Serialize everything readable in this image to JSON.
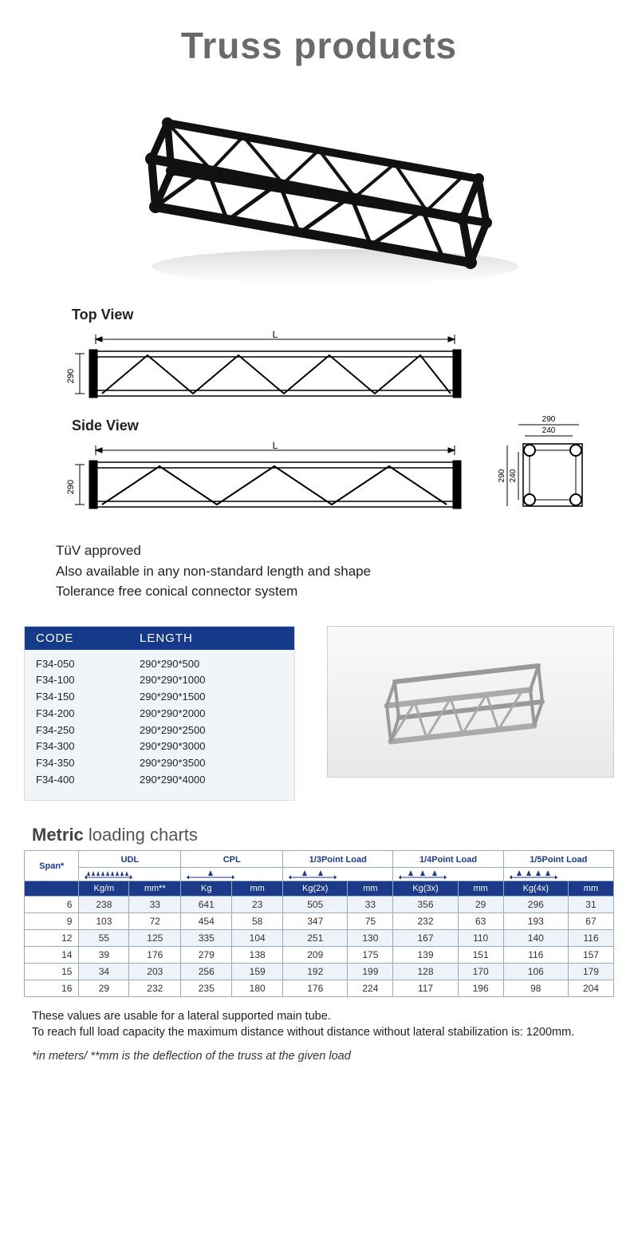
{
  "title": "Truss products",
  "views": {
    "top": "Top View",
    "side": "Side View"
  },
  "diagram": {
    "length_label": "L",
    "height_label": "290",
    "cross": {
      "outer": "290",
      "inner": "240"
    }
  },
  "notes": [
    "TüV approved",
    "Also available in any non-standard length and shape",
    "Tolerance free conical connector system"
  ],
  "code_table": {
    "headers": [
      "CODE",
      "LENGTH"
    ],
    "rows": [
      [
        "F34-050",
        "290*290*500"
      ],
      [
        "F34-100",
        "290*290*1000"
      ],
      [
        "F34-150",
        "290*290*1500"
      ],
      [
        "F34-200",
        "290*290*2000"
      ],
      [
        "F34-250",
        "290*290*2500"
      ],
      [
        "F34-300",
        "290*290*3000"
      ],
      [
        "F34-350",
        "290*290*3500"
      ],
      [
        "F34-400",
        "290*290*4000"
      ]
    ]
  },
  "metric_title_bold": "Metric",
  "metric_title_rest": " loading charts",
  "load_table": {
    "span_label": "Span*",
    "groups": [
      "UDL",
      "CPL",
      "1/3Point Load",
      "1/4Point Load",
      "1/5Point Load"
    ],
    "units": [
      "Kg/m",
      "mm**",
      "Kg",
      "mm",
      "Kg(2x)",
      "mm",
      "Kg(3x)",
      "mm",
      "Kg(4x)",
      "mm"
    ],
    "rows": [
      [
        "6",
        "238",
        "33",
        "641",
        "23",
        "505",
        "33",
        "356",
        "29",
        "296",
        "31"
      ],
      [
        "9",
        "103",
        "72",
        "454",
        "58",
        "347",
        "75",
        "232",
        "63",
        "193",
        "67"
      ],
      [
        "12",
        "55",
        "125",
        "335",
        "104",
        "251",
        "130",
        "167",
        "110",
        "140",
        "116"
      ],
      [
        "14",
        "39",
        "176",
        "279",
        "138",
        "209",
        "175",
        "139",
        "151",
        "116",
        "157"
      ],
      [
        "15",
        "34",
        "203",
        "256",
        "159",
        "192",
        "199",
        "128",
        "170",
        "106",
        "179"
      ],
      [
        "16",
        "29",
        "232",
        "235",
        "180",
        "176",
        "224",
        "117",
        "196",
        "98",
        "204"
      ]
    ]
  },
  "footnote1": "These values are usable for a lateral supported main tube.",
  "footnote2": "To reach full load capacity the maximum distance without distance without lateral stabilization is: 1200mm.",
  "footnote3": "*in meters/ **mm is the deflection of the truss at the given load",
  "colors": {
    "header_blue": "#163a8a",
    "row_alt": "#eef3f9",
    "border": "#9ab"
  }
}
